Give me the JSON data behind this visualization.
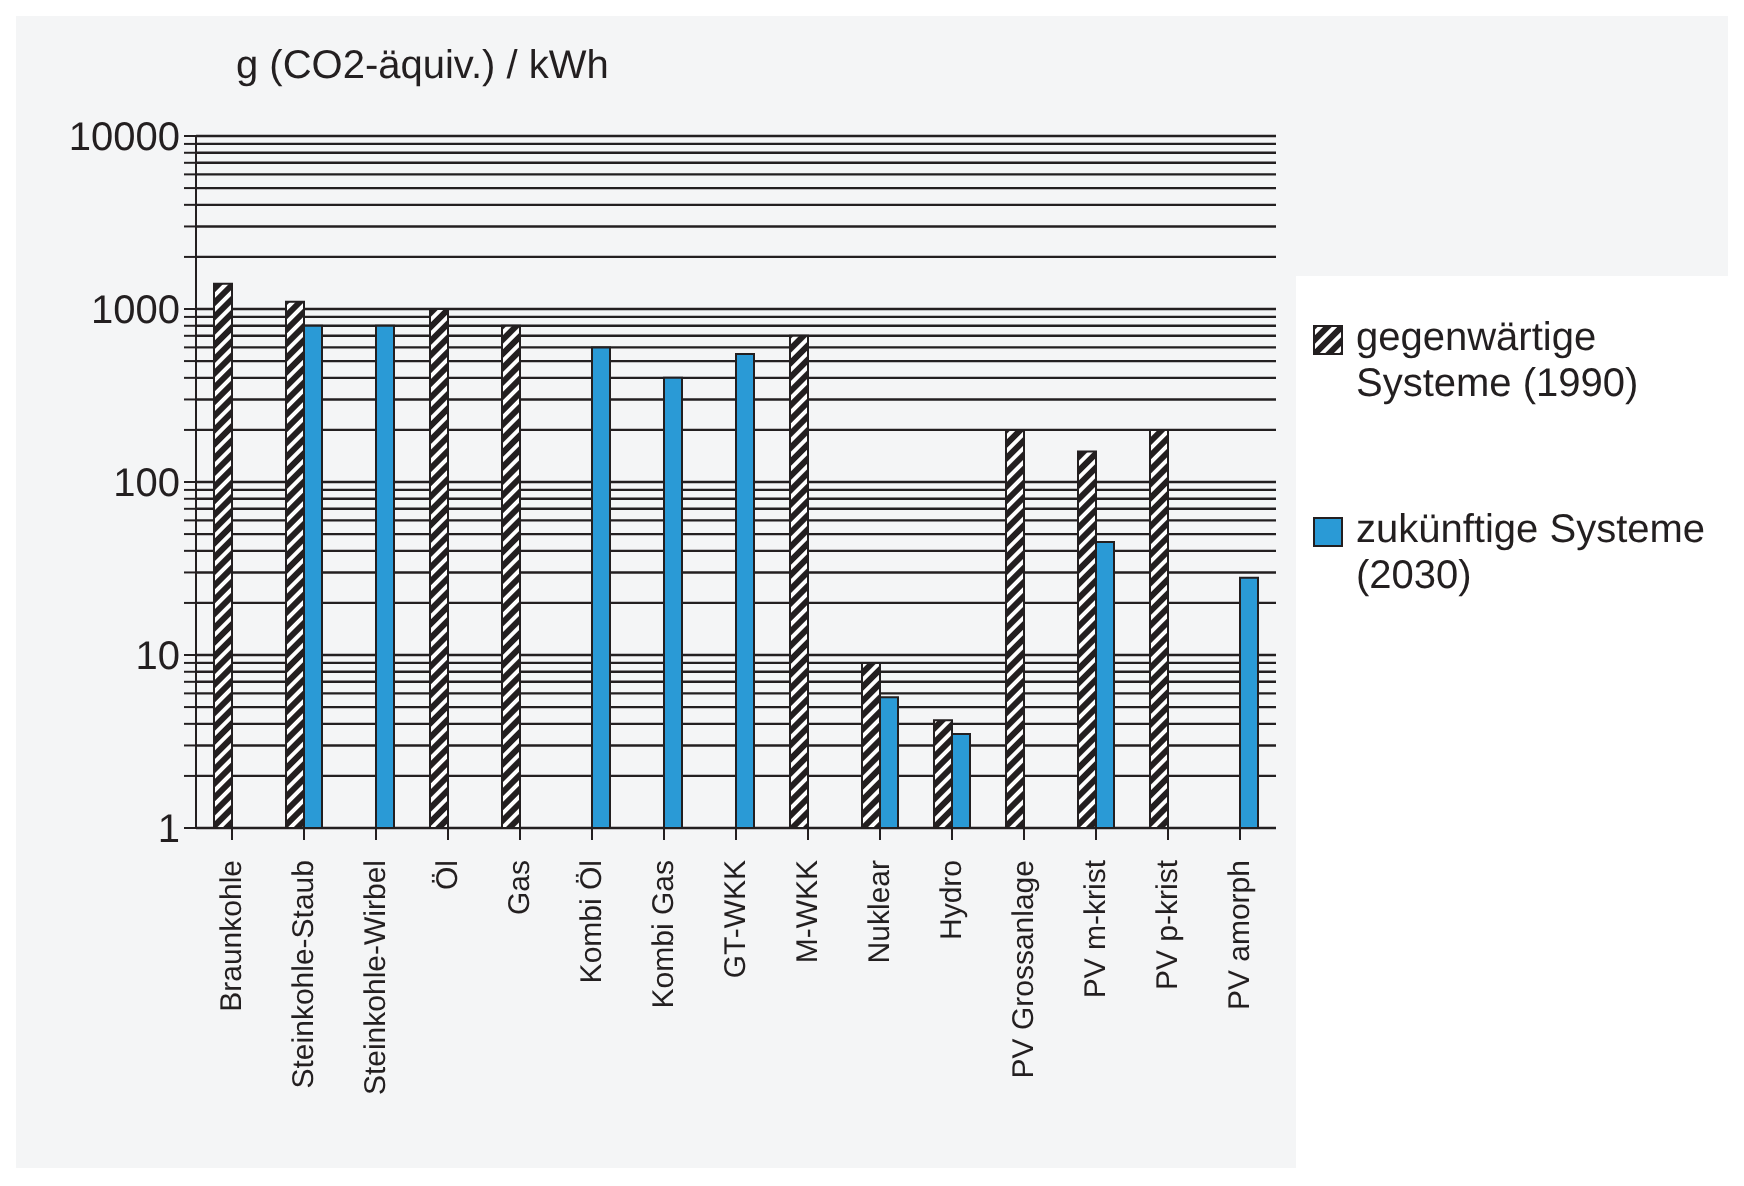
{
  "chart_data": {
    "type": "bar",
    "ylabel": "g (CO2-äquiv.) / kWh",
    "categories": [
      "Braunkohle",
      "Steinkohle-Staub",
      "Steinkohle-Wirbel",
      "Öl",
      "Gas",
      "Kombi Öl",
      "Kombi Gas",
      "GT-WKK",
      "M-WKK",
      "Nuklear",
      "Hydro",
      "PV Grossanlage",
      "PV m-krist",
      "PV p-krist",
      "PV amorph"
    ],
    "series": [
      {
        "name": "gegenwärtige Systeme (1990)",
        "color": "#231f20",
        "values": [
          1400,
          1100,
          null,
          1000,
          800,
          null,
          null,
          null,
          700,
          9,
          4.2,
          200,
          150,
          200,
          null
        ]
      },
      {
        "name": "zukünftige Systeme (2030)",
        "color": "#2a9ad6",
        "values": [
          null,
          800,
          800,
          null,
          null,
          600,
          400,
          550,
          null,
          5.7,
          3.5,
          null,
          45,
          null,
          28
        ]
      }
    ],
    "log": "y",
    "ylim": [
      1,
      10000
    ],
    "yticks": [
      1,
      {
        "value": 2,
        "label": null
      },
      {
        "value": 3,
        "label": null
      },
      {
        "value": 4,
        "label": null
      },
      {
        "value": 5,
        "label": null
      },
      {
        "value": 6,
        "label": null
      },
      {
        "value": 7,
        "label": null
      },
      {
        "value": 8,
        "label": null
      },
      {
        "value": 9,
        "label": null
      },
      10,
      {
        "value": 20,
        "label": null
      },
      {
        "value": 30,
        "label": null
      },
      {
        "value": 40,
        "label": null
      },
      {
        "value": 50,
        "label": null
      },
      {
        "value": 60,
        "label": null
      },
      {
        "value": 70,
        "label": null
      },
      {
        "value": 80,
        "label": null
      },
      {
        "value": 90,
        "label": null
      },
      100,
      {
        "value": 200,
        "label": null
      },
      {
        "value": 300,
        "label": null
      },
      {
        "value": 400,
        "label": null
      },
      {
        "value": 500,
        "label": null
      },
      {
        "value": 600,
        "label": null
      },
      {
        "value": 700,
        "label": null
      },
      {
        "value": 800,
        "label": null
      },
      {
        "value": 900,
        "label": null
      },
      1000,
      {
        "value": 2000,
        "label": null
      },
      {
        "value": 3000,
        "label": null
      },
      {
        "value": 4000,
        "label": null
      },
      {
        "value": 5000,
        "label": null
      },
      {
        "value": 6000,
        "label": null
      },
      {
        "value": 7000,
        "label": null
      },
      {
        "value": 8000,
        "label": null
      },
      {
        "value": 9000,
        "label": null
      },
      10000
    ],
    "grid": "y",
    "legend": "right"
  }
}
